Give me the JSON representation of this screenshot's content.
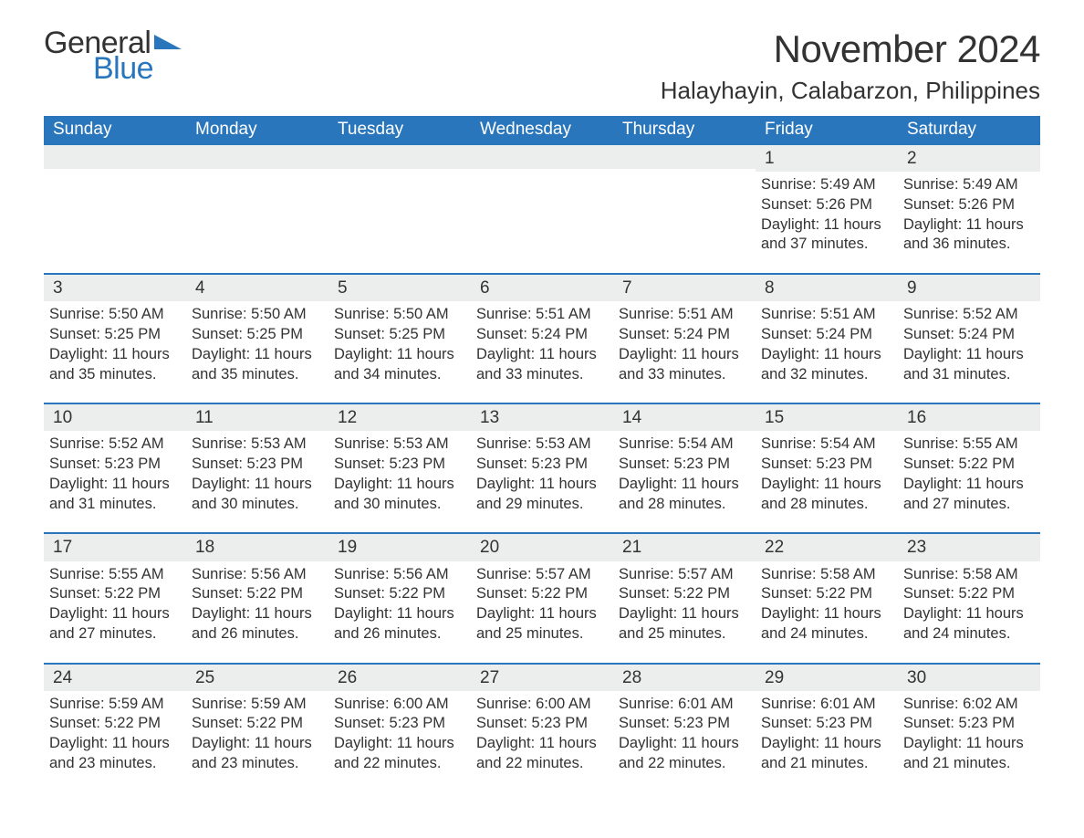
{
  "logo": {
    "line1": "General",
    "line2": "Blue",
    "accent_color": "#2a76bc"
  },
  "header": {
    "title": "November 2024",
    "location": "Halayhayin, Calabarzon, Philippines"
  },
  "colors": {
    "header_bg": "#2a76bc",
    "header_text": "#ffffff",
    "daynum_bg": "#eceded",
    "day_border": "#2a76bc",
    "body_text": "#333333",
    "page_bg": "#ffffff"
  },
  "weekdays": [
    "Sunday",
    "Monday",
    "Tuesday",
    "Wednesday",
    "Thursday",
    "Friday",
    "Saturday"
  ],
  "leading_blanks": 5,
  "days": [
    {
      "n": 1,
      "sunrise": "5:49 AM",
      "sunset": "5:26 PM",
      "daylight": "11 hours and 37 minutes."
    },
    {
      "n": 2,
      "sunrise": "5:49 AM",
      "sunset": "5:26 PM",
      "daylight": "11 hours and 36 minutes."
    },
    {
      "n": 3,
      "sunrise": "5:50 AM",
      "sunset": "5:25 PM",
      "daylight": "11 hours and 35 minutes."
    },
    {
      "n": 4,
      "sunrise": "5:50 AM",
      "sunset": "5:25 PM",
      "daylight": "11 hours and 35 minutes."
    },
    {
      "n": 5,
      "sunrise": "5:50 AM",
      "sunset": "5:25 PM",
      "daylight": "11 hours and 34 minutes."
    },
    {
      "n": 6,
      "sunrise": "5:51 AM",
      "sunset": "5:24 PM",
      "daylight": "11 hours and 33 minutes."
    },
    {
      "n": 7,
      "sunrise": "5:51 AM",
      "sunset": "5:24 PM",
      "daylight": "11 hours and 33 minutes."
    },
    {
      "n": 8,
      "sunrise": "5:51 AM",
      "sunset": "5:24 PM",
      "daylight": "11 hours and 32 minutes."
    },
    {
      "n": 9,
      "sunrise": "5:52 AM",
      "sunset": "5:24 PM",
      "daylight": "11 hours and 31 minutes."
    },
    {
      "n": 10,
      "sunrise": "5:52 AM",
      "sunset": "5:23 PM",
      "daylight": "11 hours and 31 minutes."
    },
    {
      "n": 11,
      "sunrise": "5:53 AM",
      "sunset": "5:23 PM",
      "daylight": "11 hours and 30 minutes."
    },
    {
      "n": 12,
      "sunrise": "5:53 AM",
      "sunset": "5:23 PM",
      "daylight": "11 hours and 30 minutes."
    },
    {
      "n": 13,
      "sunrise": "5:53 AM",
      "sunset": "5:23 PM",
      "daylight": "11 hours and 29 minutes."
    },
    {
      "n": 14,
      "sunrise": "5:54 AM",
      "sunset": "5:23 PM",
      "daylight": "11 hours and 28 minutes."
    },
    {
      "n": 15,
      "sunrise": "5:54 AM",
      "sunset": "5:23 PM",
      "daylight": "11 hours and 28 minutes."
    },
    {
      "n": 16,
      "sunrise": "5:55 AM",
      "sunset": "5:22 PM",
      "daylight": "11 hours and 27 minutes."
    },
    {
      "n": 17,
      "sunrise": "5:55 AM",
      "sunset": "5:22 PM",
      "daylight": "11 hours and 27 minutes."
    },
    {
      "n": 18,
      "sunrise": "5:56 AM",
      "sunset": "5:22 PM",
      "daylight": "11 hours and 26 minutes."
    },
    {
      "n": 19,
      "sunrise": "5:56 AM",
      "sunset": "5:22 PM",
      "daylight": "11 hours and 26 minutes."
    },
    {
      "n": 20,
      "sunrise": "5:57 AM",
      "sunset": "5:22 PM",
      "daylight": "11 hours and 25 minutes."
    },
    {
      "n": 21,
      "sunrise": "5:57 AM",
      "sunset": "5:22 PM",
      "daylight": "11 hours and 25 minutes."
    },
    {
      "n": 22,
      "sunrise": "5:58 AM",
      "sunset": "5:22 PM",
      "daylight": "11 hours and 24 minutes."
    },
    {
      "n": 23,
      "sunrise": "5:58 AM",
      "sunset": "5:22 PM",
      "daylight": "11 hours and 24 minutes."
    },
    {
      "n": 24,
      "sunrise": "5:59 AM",
      "sunset": "5:22 PM",
      "daylight": "11 hours and 23 minutes."
    },
    {
      "n": 25,
      "sunrise": "5:59 AM",
      "sunset": "5:22 PM",
      "daylight": "11 hours and 23 minutes."
    },
    {
      "n": 26,
      "sunrise": "6:00 AM",
      "sunset": "5:23 PM",
      "daylight": "11 hours and 22 minutes."
    },
    {
      "n": 27,
      "sunrise": "6:00 AM",
      "sunset": "5:23 PM",
      "daylight": "11 hours and 22 minutes."
    },
    {
      "n": 28,
      "sunrise": "6:01 AM",
      "sunset": "5:23 PM",
      "daylight": "11 hours and 22 minutes."
    },
    {
      "n": 29,
      "sunrise": "6:01 AM",
      "sunset": "5:23 PM",
      "daylight": "11 hours and 21 minutes."
    },
    {
      "n": 30,
      "sunrise": "6:02 AM",
      "sunset": "5:23 PM",
      "daylight": "11 hours and 21 minutes."
    }
  ],
  "labels": {
    "sunrise": "Sunrise:",
    "sunset": "Sunset:",
    "daylight": "Daylight:"
  }
}
